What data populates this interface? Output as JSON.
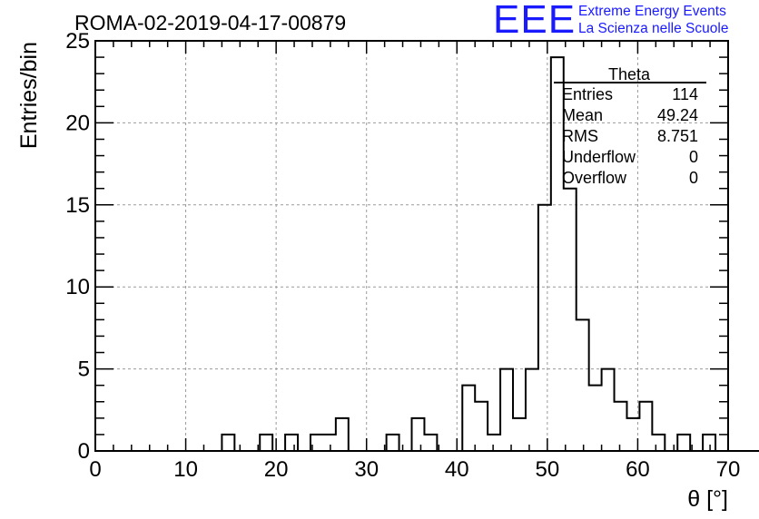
{
  "header": {
    "run_title": "ROMA-02-2019-04-17-00879",
    "logo_mark": "EEE",
    "logo_line1": "Extreme Energy Events",
    "logo_line2": "La Scienza nelle Scuole",
    "logo_color": "#1a1aff"
  },
  "stats_box": {
    "title": "Theta",
    "rows": [
      {
        "label": "Entries",
        "value": "114"
      },
      {
        "label": "Mean",
        "value": "49.24"
      },
      {
        "label": "RMS",
        "value": "8.751"
      },
      {
        "label": "Underflow",
        "value": "0"
      },
      {
        "label": "Overflow",
        "value": "0"
      }
    ]
  },
  "chart_data": {
    "type": "bar",
    "histogram": true,
    "xlabel": "θ [°]",
    "ylabel": "Entries/bin",
    "xlim": [
      0,
      70
    ],
    "ylim": [
      0,
      25
    ],
    "bin_width": 1.4,
    "x_ticks": [
      0,
      10,
      20,
      30,
      40,
      50,
      60,
      70
    ],
    "y_ticks": [
      0,
      5,
      10,
      15,
      20,
      25
    ],
    "grid": true,
    "counts": [
      0,
      0,
      0,
      0,
      0,
      0,
      0,
      0,
      0,
      0,
      1,
      0,
      0,
      1,
      0,
      1,
      0,
      1,
      1,
      2,
      0,
      0,
      0,
      1,
      0,
      2,
      1,
      0,
      0,
      4,
      3,
      1,
      5,
      2,
      5,
      15,
      24,
      16,
      8,
      4,
      5,
      3,
      2,
      3,
      1,
      0,
      1,
      0,
      1,
      0,
      0,
      0,
      0,
      0,
      0,
      0,
      0,
      0,
      0,
      0
    ]
  }
}
